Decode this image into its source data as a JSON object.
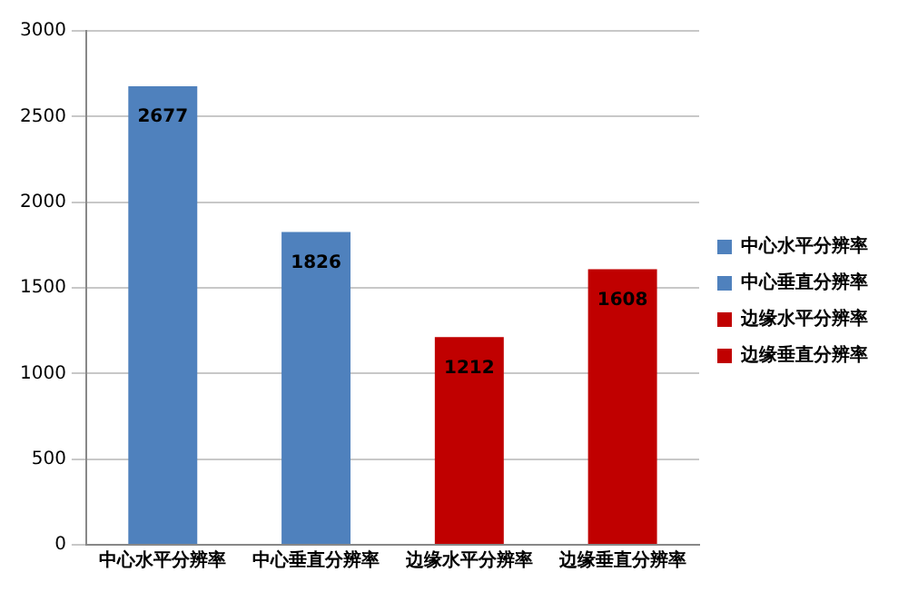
{
  "chart_data": {
    "type": "bar",
    "categories": [
      "中心水平分辨率",
      "中心垂直分辨率",
      "边缘水平分辨率",
      "边缘垂直分辨率"
    ],
    "series": [
      {
        "name": "中心水平分辨率",
        "color": "#4f81bd",
        "values": [
          2677,
          null,
          null,
          null
        ]
      },
      {
        "name": "中心垂直分辨率",
        "color": "#4f81bd",
        "values": [
          null,
          1826,
          null,
          null
        ]
      },
      {
        "name": "边缘水平分辨率",
        "color": "#c00000",
        "values": [
          null,
          null,
          1212,
          null
        ]
      },
      {
        "name": "边缘垂直分辨率",
        "color": "#c00000",
        "values": [
          null,
          null,
          null,
          1608
        ]
      }
    ],
    "ylim": [
      0,
      3000
    ],
    "yticks": [
      0,
      500,
      1000,
      1500,
      2000,
      2500,
      3000
    ],
    "grid": "y",
    "legend": "right",
    "data_labels": true
  }
}
